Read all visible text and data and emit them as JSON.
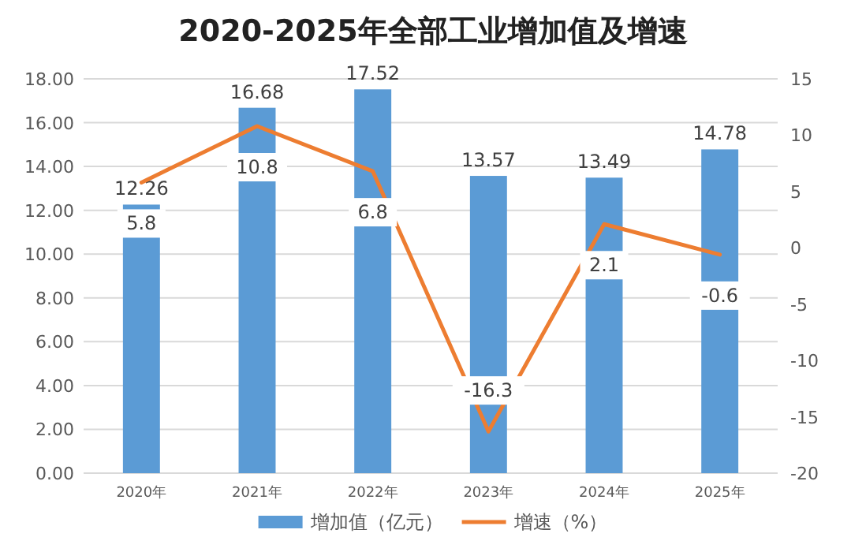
{
  "chart_data": {
    "type": "bar",
    "title": "2020-2025年全部工业增加值及增速",
    "categories": [
      "2020年",
      "2021年",
      "2022年",
      "2023年",
      "2024年",
      "2025年"
    ],
    "series": [
      {
        "name": "增加值（亿元）",
        "color": "#5b9bd5",
        "values": [
          12.26,
          16.68,
          17.52,
          13.57,
          13.49,
          14.78
        ],
        "value_labels": [
          "12.26",
          "16.68",
          "17.52",
          "13.57",
          "13.49",
          "14.78"
        ]
      },
      {
        "name": "增速（%）",
        "type": "line",
        "axis": "y2",
        "color": "#ed7d31",
        "values": [
          5.8,
          10.8,
          6.8,
          -16.3,
          2.1,
          -0.6
        ],
        "value_labels": [
          "5.8",
          "10.8",
          "6.8",
          "-16.3",
          "2.1",
          "-0.6"
        ]
      }
    ],
    "ylim": [
      0,
      18
    ],
    "yticks": [
      {
        "value": 0,
        "label": "0.00"
      },
      {
        "value": 2,
        "label": "2.00"
      },
      {
        "value": 4,
        "label": "4.00"
      },
      {
        "value": 6,
        "label": "6.00"
      },
      {
        "value": 8,
        "label": "8.00"
      },
      {
        "value": 10,
        "label": "10.00"
      },
      {
        "value": 12,
        "label": "12.00"
      },
      {
        "value": 14,
        "label": "14.00"
      },
      {
        "value": 16,
        "label": "16.00"
      },
      {
        "value": 18,
        "label": "18.00"
      }
    ],
    "y2lim": [
      -20,
      15
    ],
    "y2ticks": [
      -20,
      -15,
      -10,
      -5,
      0,
      5,
      10,
      15
    ],
    "grid": "y",
    "legend": "bottom",
    "marker": "none",
    "line_style": "solid"
  }
}
